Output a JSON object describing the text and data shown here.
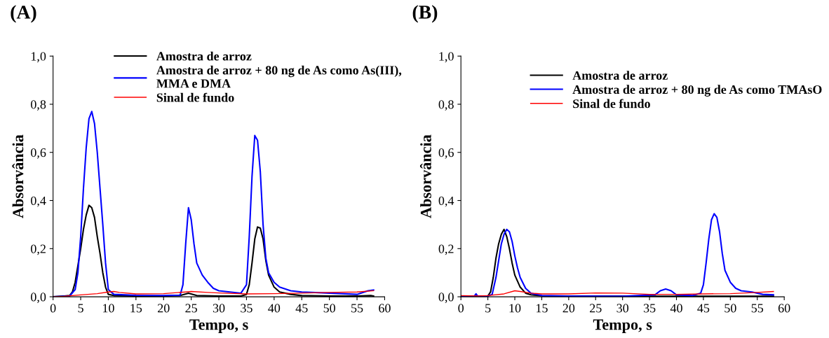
{
  "chart_data": [
    {
      "type": "line",
      "title": "(A)",
      "xlabel": "Tempo, s",
      "ylabel": "Absorvância",
      "xlim": [
        0,
        60
      ],
      "ylim": [
        0,
        1.0
      ],
      "xticks": [
        0,
        5,
        10,
        15,
        20,
        25,
        30,
        35,
        40,
        45,
        50,
        55,
        60
      ],
      "yticks": [
        {
          "value": 0,
          "label": "0,0"
        },
        {
          "value": 0.2,
          "label": "0,2"
        },
        {
          "value": 0.4,
          "label": "0,4"
        },
        {
          "value": 0.6,
          "label": "0,6"
        },
        {
          "value": 0.8,
          "label": "0,8"
        },
        {
          "value": 1.0,
          "label": "1,0"
        }
      ],
      "legend": "top",
      "grid": false,
      "series": [
        {
          "name": "Amostra de arroz",
          "color": "#000000",
          "x": [
            0,
            2,
            3,
            3.5,
            4,
            4.5,
            5,
            5.5,
            6,
            6.5,
            7,
            7.5,
            8,
            8.5,
            9,
            9.5,
            10,
            11,
            15,
            20,
            23,
            24.5,
            26,
            30,
            34,
            35,
            35.5,
            36,
            36.5,
            37,
            37.5,
            38,
            38.5,
            39,
            40,
            41,
            43,
            45,
            50,
            55,
            57.5,
            58
          ],
          "values": [
            0,
            0.003,
            0.005,
            0.02,
            0.06,
            0.13,
            0.2,
            0.28,
            0.34,
            0.38,
            0.37,
            0.33,
            0.25,
            0.18,
            0.1,
            0.04,
            0.01,
            0.005,
            0.003,
            0.003,
            0.005,
            0.015,
            0.005,
            0.003,
            0.003,
            0.01,
            0.05,
            0.14,
            0.24,
            0.29,
            0.285,
            0.24,
            0.15,
            0.09,
            0.04,
            0.02,
            0.01,
            0.005,
            0.003,
            0.003,
            0.005,
            0.003
          ]
        },
        {
          "name": "Amostra de arroz + 80 ng de As como As(III),\nMMA e DMA",
          "color": "#0000ff",
          "x": [
            0,
            3,
            4,
            4.5,
            5,
            5.5,
            6,
            6.5,
            7,
            7.5,
            8,
            8.5,
            9,
            9.5,
            10,
            11,
            15,
            20,
            23,
            23.5,
            24,
            24.5,
            25,
            25.5,
            26,
            27,
            28,
            29,
            30,
            32,
            34,
            35,
            35.5,
            36,
            36.5,
            37,
            37.5,
            38,
            38.5,
            39,
            40,
            41,
            43,
            45,
            50,
            55,
            57,
            58
          ],
          "values": [
            0,
            0.003,
            0.03,
            0.1,
            0.25,
            0.45,
            0.62,
            0.74,
            0.77,
            0.72,
            0.6,
            0.45,
            0.3,
            0.14,
            0.03,
            0.01,
            0.006,
            0.005,
            0.007,
            0.05,
            0.22,
            0.37,
            0.32,
            0.22,
            0.14,
            0.09,
            0.06,
            0.035,
            0.025,
            0.02,
            0.015,
            0.05,
            0.25,
            0.5,
            0.67,
            0.65,
            0.52,
            0.3,
            0.16,
            0.1,
            0.06,
            0.04,
            0.025,
            0.02,
            0.015,
            0.01,
            0.025,
            0.028
          ]
        },
        {
          "name": "Sinal de fundo",
          "color": "#ff0000",
          "x": [
            0,
            2,
            5,
            8,
            10,
            11,
            12,
            15,
            20,
            24,
            25,
            28,
            30,
            35,
            40,
            45,
            50,
            55,
            58
          ],
          "values": [
            0,
            0.002,
            0.008,
            0.013,
            0.02,
            0.022,
            0.018,
            0.012,
            0.013,
            0.02,
            0.022,
            0.018,
            0.016,
            0.012,
            0.013,
            0.015,
            0.018,
            0.02,
            0.025
          ]
        }
      ]
    },
    {
      "type": "line",
      "title": "(B)",
      "xlabel": "Tempo, s",
      "ylabel": "Absorvância",
      "xlim": [
        0,
        60
      ],
      "ylim": [
        0,
        1.0
      ],
      "xticks": [
        0,
        5,
        10,
        15,
        20,
        25,
        30,
        35,
        40,
        45,
        50,
        55,
        60
      ],
      "yticks": [
        {
          "value": 0,
          "label": "0,0"
        },
        {
          "value": 0.2,
          "label": "0,2"
        },
        {
          "value": 0.4,
          "label": "0,4"
        },
        {
          "value": 0.6,
          "label": "0,6"
        },
        {
          "value": 0.8,
          "label": "0,8"
        },
        {
          "value": 1.0,
          "label": "1,0"
        }
      ],
      "legend": "top",
      "grid": false,
      "series": [
        {
          "name": "Amostra de arroz",
          "color": "#000000",
          "x": [
            0,
            5,
            5.5,
            6,
            6.5,
            7,
            7.5,
            8,
            8.5,
            9,
            9.5,
            10,
            11,
            12,
            13,
            15,
            20,
            30,
            40,
            50,
            58
          ],
          "values": [
            0,
            0.003,
            0.02,
            0.08,
            0.16,
            0.22,
            0.26,
            0.28,
            0.25,
            0.2,
            0.14,
            0.09,
            0.04,
            0.015,
            0.008,
            0.004,
            0.003,
            0.002,
            0.002,
            0.002,
            0.002
          ]
        },
        {
          "name": "Amostra de arroz + 80 ng de As como TMAsO",
          "color": "#0000ff",
          "x": [
            0,
            2.5,
            2.8,
            3.1,
            5,
            5.8,
            6.5,
            7,
            7.5,
            8,
            8.5,
            9,
            9.5,
            10,
            10.5,
            11,
            12,
            13,
            15,
            20,
            30,
            36,
            37,
            38,
            39,
            40,
            43,
            44.5,
            45,
            45.5,
            46,
            46.5,
            47,
            47.5,
            48,
            48.5,
            49,
            50,
            51,
            52,
            54,
            56,
            58
          ],
          "values": [
            0,
            0.003,
            0.012,
            0.003,
            0.003,
            0.01,
            0.08,
            0.15,
            0.22,
            0.26,
            0.28,
            0.27,
            0.23,
            0.17,
            0.12,
            0.08,
            0.035,
            0.015,
            0.005,
            0.003,
            0.002,
            0.008,
            0.025,
            0.032,
            0.025,
            0.008,
            0.005,
            0.015,
            0.05,
            0.14,
            0.24,
            0.32,
            0.345,
            0.33,
            0.27,
            0.18,
            0.11,
            0.06,
            0.035,
            0.025,
            0.02,
            0.01,
            0.008
          ]
        },
        {
          "name": "Sinal de fundo",
          "color": "#ff0000",
          "x": [
            0,
            3,
            5,
            8,
            10,
            11,
            13,
            15,
            20,
            25,
            30,
            35,
            40,
            45,
            50,
            55,
            58
          ],
          "values": [
            0.005,
            0.003,
            0.005,
            0.012,
            0.025,
            0.022,
            0.015,
            0.012,
            0.012,
            0.016,
            0.015,
            0.01,
            0.01,
            0.012,
            0.013,
            0.018,
            0.022
          ]
        }
      ]
    }
  ]
}
